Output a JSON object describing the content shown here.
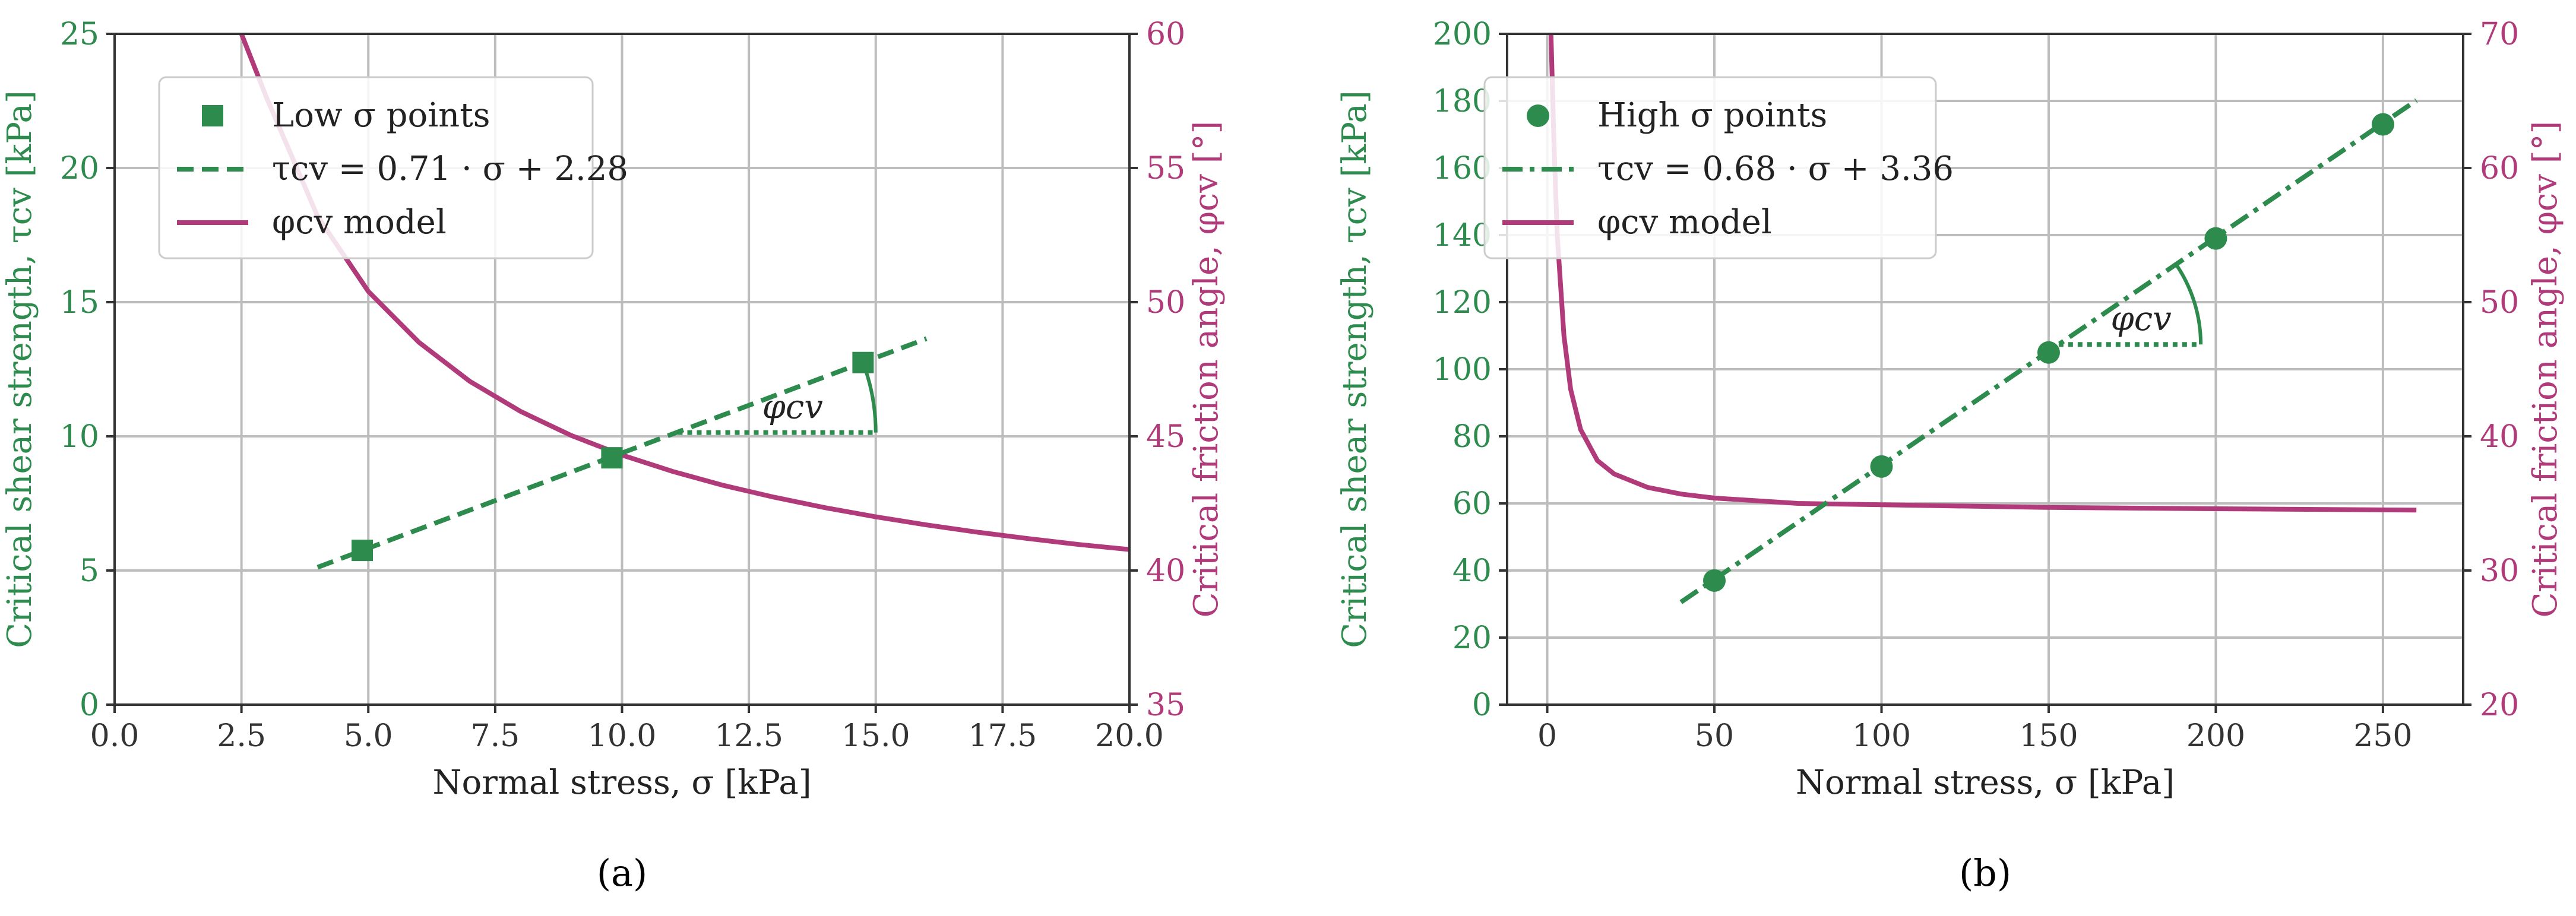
{
  "colors": {
    "green": "#2e8b4e",
    "purple": "#b03a7a"
  },
  "chart_data": [
    {
      "panel_label": "(a)",
      "type": "scatter",
      "xlabel": "Normal stress, σ [kPa]",
      "ylabel_left": "Critical shear strength, τcv [kPa]",
      "ylabel_right": "Critical friction angle, φcv [°]",
      "xlim": [
        0,
        20
      ],
      "ylim_left": [
        0,
        25
      ],
      "ylim_right": [
        35,
        60
      ],
      "x_ticks": [
        "0.0",
        "2.5",
        "5.0",
        "7.5",
        "10.0",
        "12.5",
        "15.0",
        "17.5",
        "20.0"
      ],
      "y_ticks_left": [
        "0",
        "5",
        "10",
        "15",
        "20",
        "25"
      ],
      "y_ticks_right": [
        "35",
        "40",
        "45",
        "50",
        "55",
        "60"
      ],
      "grid": true,
      "legend_position": "top-left",
      "points": {
        "name": "Low σ points",
        "marker": "square",
        "x": [
          4.88,
          9.8,
          14.75
        ],
        "y": [
          5.75,
          9.2,
          12.75
        ]
      },
      "fit": {
        "name": "τcv = 0.71 · σ + 2.28",
        "style": "dashed",
        "slope": 0.71,
        "intercept": 2.28,
        "x_range": [
          4,
          16
        ]
      },
      "model": {
        "name": "φcv model",
        "x": [
          2.5,
          3,
          4,
          5,
          6,
          7,
          8,
          9,
          10,
          11,
          12,
          13,
          14,
          15,
          16,
          17,
          18,
          19,
          20
        ],
        "y": [
          60,
          57.6,
          53.2,
          50.4,
          48.5,
          47.05,
          45.93,
          45.03,
          44.3,
          43.69,
          43.17,
          42.73,
          42.34,
          42.0,
          41.7,
          41.43,
          41.19,
          40.97,
          40.78
        ]
      },
      "angle_annotation": {
        "label": "φcv",
        "x0": 11.1,
        "x1": 15.0,
        "y": 10.14
      }
    },
    {
      "panel_label": "(b)",
      "type": "scatter",
      "xlabel": "Normal stress, σ [kPa]",
      "ylabel_left": "Critical shear strength, τcv [kPa]",
      "ylabel_right": "Critical friction angle, φcv [°]",
      "xlim": [
        -12,
        274
      ],
      "ylim_left": [
        0,
        200
      ],
      "ylim_right": [
        20,
        70
      ],
      "x_ticks": [
        "0",
        "50",
        "100",
        "150",
        "200",
        "250"
      ],
      "x_tick_values": [
        0,
        50,
        100,
        150,
        200,
        250
      ],
      "y_ticks_left": [
        "0",
        "20",
        "40",
        "60",
        "80",
        "100",
        "120",
        "140",
        "160",
        "180",
        "200"
      ],
      "y_ticks_right": [
        "20",
        "30",
        "40",
        "50",
        "60",
        "70"
      ],
      "grid": true,
      "legend_position": "top-left",
      "points": {
        "name": "High σ points",
        "marker": "circle",
        "x": [
          50,
          100,
          150,
          200,
          250
        ],
        "y": [
          37,
          71,
          105,
          139,
          173
        ]
      },
      "fit": {
        "name": "τcv = 0.68 · σ + 3.36",
        "style": "dashdot",
        "slope": 0.68,
        "intercept": 3.36,
        "x_range": [
          40,
          260
        ]
      },
      "model": {
        "name": "φcv model",
        "x": [
          1,
          2,
          3,
          5,
          7,
          10,
          15,
          20,
          30,
          40,
          50,
          75,
          100,
          150,
          200,
          260
        ],
        "y": [
          71,
          62,
          55,
          47.5,
          43.5,
          40.5,
          38.2,
          37.2,
          36.2,
          35.7,
          35.4,
          35.0,
          34.9,
          34.7,
          34.6,
          34.5
        ]
      },
      "angle_annotation": {
        "label": "φcv",
        "x0": 153,
        "x1": 195.5,
        "y": 107.4
      }
    }
  ]
}
